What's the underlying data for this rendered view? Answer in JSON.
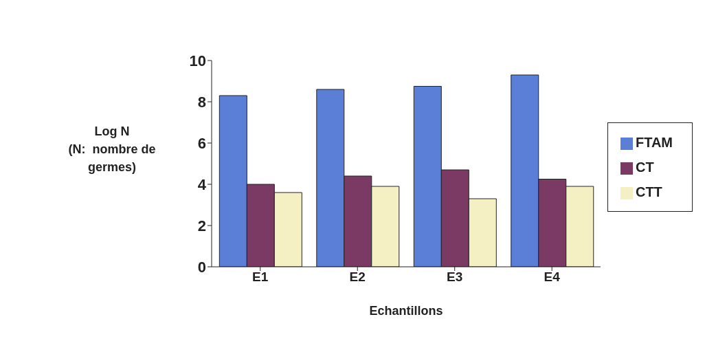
{
  "chart_data": {
    "type": "bar",
    "xlabel": "Echantillons",
    "ylabel": "Log N\n(N:  nombre de germes)",
    "categories": [
      "E1",
      "E2",
      "E3",
      "E4"
    ],
    "series": [
      {
        "name": "FTAM",
        "color": "#5b7fd6",
        "values": [
          8.3,
          8.6,
          8.75,
          9.3
        ]
      },
      {
        "name": "CT",
        "color": "#7b3a64",
        "values": [
          4.0,
          4.4,
          4.7,
          4.25
        ]
      },
      {
        "name": "CTT",
        "color": "#f5efc4",
        "values": [
          3.6,
          3.9,
          3.3,
          3.9
        ]
      }
    ],
    "ylim": [
      0,
      10
    ],
    "yticks": [
      0,
      2,
      4,
      6,
      8,
      10
    ],
    "grid": false,
    "legend": "right"
  }
}
